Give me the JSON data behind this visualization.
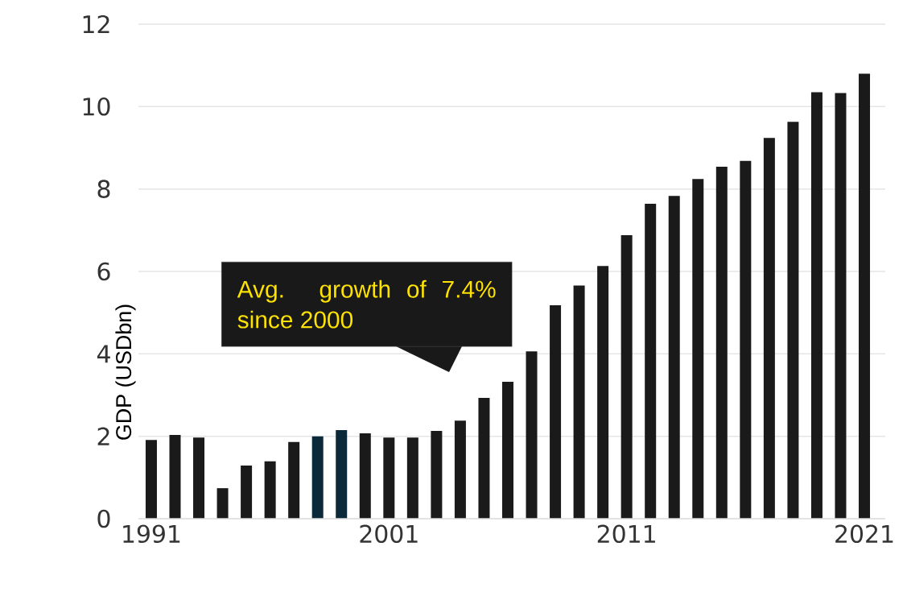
{
  "chart_data": {
    "type": "bar",
    "ylabel": "GDP (USDbn)",
    "x": [
      1991,
      1992,
      1993,
      1994,
      1995,
      1996,
      1997,
      1998,
      1999,
      2000,
      2001,
      2002,
      2003,
      2004,
      2005,
      2006,
      2007,
      2008,
      2009,
      2010,
      2011,
      2012,
      2013,
      2014,
      2015,
      2016,
      2017,
      2018,
      2019,
      2020,
      2021
    ],
    "values": [
      1.91,
      2.03,
      1.97,
      0.74,
      1.29,
      1.39,
      1.86,
      2.0,
      2.15,
      2.07,
      1.97,
      1.97,
      2.13,
      2.38,
      2.93,
      3.32,
      4.06,
      5.18,
      5.66,
      6.13,
      6.88,
      7.64,
      7.83,
      8.24,
      8.54,
      8.68,
      9.24,
      9.63,
      10.35,
      10.33,
      10.8
    ],
    "colors": [
      "#1a1a1a",
      "#1a1a1a",
      "#1a1a1a",
      "#1a1a1a",
      "#1a1a1a",
      "#1a1a1a",
      "#1a1a1a",
      "#0a2a3a",
      "#0a2a3a",
      "#1a1a1a",
      "#1a1a1a",
      "#1a1a1a",
      "#1a1a1a",
      "#1a1a1a",
      "#1a1a1a",
      "#1a1a1a",
      "#1a1a1a",
      "#1a1a1a",
      "#1a1a1a",
      "#1a1a1a",
      "#1a1a1a",
      "#1a1a1a",
      "#1a1a1a",
      "#1a1a1a",
      "#1a1a1a",
      "#1a1a1a",
      "#1a1a1a",
      "#1a1a1a",
      "#1a1a1a",
      "#1a1a1a",
      "#1a1a1a"
    ],
    "xlim": [
      1990.46,
      2021.88
    ],
    "xticks": [
      1991,
      2001,
      2011,
      2021
    ],
    "ylim": [
      0,
      12
    ],
    "yticks": [
      0,
      2,
      4,
      6,
      8,
      10,
      12
    ],
    "grid": "y",
    "annotations": [
      "Avg. growth of 7.4% since 2000"
    ]
  }
}
